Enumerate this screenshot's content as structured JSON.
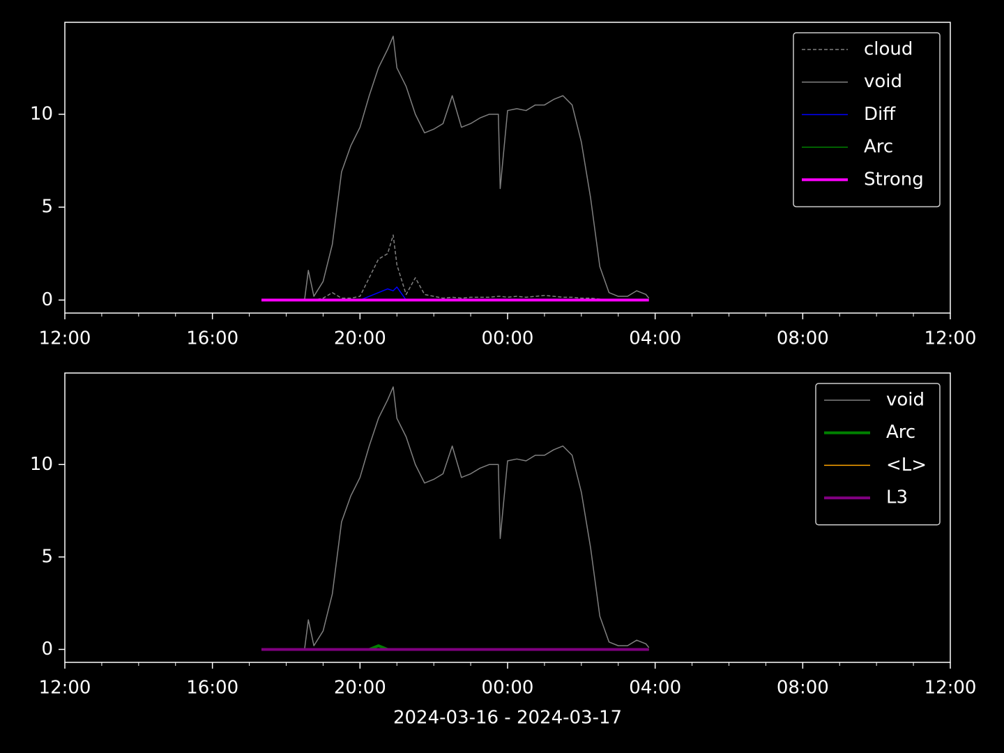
{
  "chart_data": [
    {
      "type": "line",
      "x": [
        17.33,
        17.5,
        17.75,
        18,
        18.25,
        18.5,
        18.6,
        18.75,
        19,
        19.25,
        19.5,
        19.75,
        20,
        20.25,
        20.5,
        20.75,
        20.9,
        21,
        21.25,
        21.5,
        21.75,
        22,
        22.25,
        22.5,
        22.75,
        23,
        23.25,
        23.5,
        23.75,
        23.8,
        24,
        24.25,
        24.5,
        24.75,
        25,
        25.25,
        25.5,
        25.75,
        26,
        26.25,
        26.5,
        26.75,
        27,
        27.25,
        27.5,
        27.75,
        27.83
      ],
      "series": [
        {
          "name": "cloud",
          "color": "#808080",
          "linewidth": 1.5,
          "dashed": true,
          "values": [
            0,
            0,
            0,
            0,
            0,
            0,
            0,
            0,
            0.1,
            0.4,
            0.1,
            0.1,
            0.2,
            1.2,
            2.2,
            2.5,
            3.5,
            1.9,
            0.3,
            1.2,
            0.3,
            0.2,
            0.1,
            0.15,
            0.1,
            0.15,
            0.15,
            0.15,
            0.2,
            0.2,
            0.15,
            0.2,
            0.15,
            0.2,
            0.25,
            0.2,
            0.15,
            0.15,
            0.1,
            0.1,
            0.05,
            0,
            0,
            0,
            0,
            0,
            0
          ]
        },
        {
          "name": "void",
          "color": "#808080",
          "linewidth": 1.5,
          "dashed": false,
          "values": [
            0,
            0,
            0,
            0,
            0,
            0.05,
            1.6,
            0.2,
            1.0,
            3.0,
            6.9,
            8.3,
            9.3,
            11,
            12.5,
            13.5,
            14.2,
            12.5,
            11.5,
            10,
            9,
            9.2,
            9.5,
            11,
            9.3,
            9.5,
            9.8,
            10,
            10,
            6,
            10.2,
            10.3,
            10.2,
            10.5,
            10.5,
            10.8,
            11,
            10.5,
            8.5,
            5.5,
            1.8,
            0.4,
            0.2,
            0.2,
            0.5,
            0.3,
            0.1
          ]
        },
        {
          "name": "Diff",
          "color": "#0000ff",
          "linewidth": 1.5,
          "dashed": false,
          "values": [
            0,
            0,
            0,
            0,
            0,
            0,
            0,
            0,
            0,
            0,
            0,
            0,
            0,
            0.2,
            0.4,
            0.6,
            0.5,
            0.7,
            0,
            0,
            0,
            0,
            0,
            0,
            0,
            0,
            0,
            0,
            0,
            0,
            0,
            0,
            0,
            0,
            0,
            0,
            0,
            0,
            0,
            0,
            0,
            0,
            0,
            0,
            0,
            0,
            0
          ]
        },
        {
          "name": "Arc",
          "color": "#008000",
          "linewidth": 1.5,
          "dashed": false,
          "values": [
            0,
            0,
            0,
            0,
            0,
            0,
            0,
            0,
            0,
            0,
            0,
            0,
            0,
            0,
            0,
            0,
            0,
            0,
            0,
            0,
            0,
            0,
            0,
            0,
            0,
            0,
            0,
            0,
            0,
            0,
            0,
            0,
            0,
            0,
            0,
            0,
            0,
            0,
            0,
            0,
            0,
            0,
            0,
            0,
            0,
            0,
            0
          ]
        },
        {
          "name": "Strong",
          "color": "#ff00ff",
          "linewidth": 4,
          "dashed": false,
          "values": [
            0,
            0,
            0,
            0,
            0,
            0,
            0,
            0,
            0,
            0,
            0,
            0,
            0,
            0,
            0,
            0,
            0,
            0,
            0,
            0,
            0,
            0,
            0,
            0,
            0,
            0,
            0,
            0,
            0,
            0,
            0,
            0,
            0,
            0,
            0,
            0,
            0,
            0,
            0,
            0,
            0,
            0,
            0,
            0,
            0,
            0,
            0
          ]
        }
      ],
      "xlim": [
        12,
        36
      ],
      "xticks": [
        {
          "value": 12,
          "label": "12:00"
        },
        {
          "value": 16,
          "label": "16:00"
        },
        {
          "value": 20,
          "label": "20:00"
        },
        {
          "value": 24,
          "label": "00:00"
        },
        {
          "value": 28,
          "label": "04:00"
        },
        {
          "value": 32,
          "label": "08:00"
        },
        {
          "value": 36,
          "label": "12:00"
        }
      ],
      "xminorticks": [
        13,
        14,
        15,
        17,
        18,
        19,
        21,
        22,
        23,
        25,
        26,
        27,
        29,
        30,
        31,
        33,
        34,
        35
      ],
      "ylim": [
        -0.7,
        14.95
      ],
      "yticks": [
        0,
        5,
        10
      ],
      "legend": "upper right"
    },
    {
      "type": "line",
      "x": [
        17.33,
        17.5,
        17.75,
        18,
        18.25,
        18.5,
        18.6,
        18.75,
        19,
        19.25,
        19.5,
        19.75,
        20,
        20.25,
        20.5,
        20.75,
        20.9,
        21,
        21.25,
        21.5,
        21.75,
        22,
        22.25,
        22.5,
        22.75,
        23,
        23.25,
        23.5,
        23.75,
        23.8,
        24,
        24.25,
        24.5,
        24.75,
        25,
        25.25,
        25.5,
        25.75,
        26,
        26.25,
        26.5,
        26.75,
        27,
        27.25,
        27.5,
        27.75,
        27.83
      ],
      "series": [
        {
          "name": "void",
          "color": "#808080",
          "linewidth": 1.5,
          "dashed": false,
          "values": [
            0,
            0,
            0,
            0,
            0,
            0.05,
            1.6,
            0.2,
            1.0,
            3.0,
            6.9,
            8.3,
            9.3,
            11,
            12.5,
            13.5,
            14.2,
            12.5,
            11.5,
            10,
            9,
            9.2,
            9.5,
            11,
            9.3,
            9.5,
            9.8,
            10,
            10,
            6,
            10.2,
            10.3,
            10.2,
            10.5,
            10.5,
            10.8,
            11,
            10.5,
            8.5,
            5.5,
            1.8,
            0.4,
            0.2,
            0.2,
            0.5,
            0.3,
            0.1
          ]
        },
        {
          "name": "Arc",
          "color": "#008000",
          "linewidth": 4,
          "dashed": false,
          "values": [
            0,
            0,
            0,
            0,
            0,
            0,
            0,
            0,
            0,
            0,
            0,
            0,
            0,
            0,
            0.2,
            0,
            0,
            0,
            0,
            0,
            0,
            0,
            0,
            0,
            0,
            0,
            0,
            0,
            0,
            0,
            0,
            0,
            0,
            0,
            0,
            0,
            0,
            0,
            0,
            0,
            0,
            0,
            0,
            0,
            0,
            0,
            0
          ]
        },
        {
          "name": "<L>",
          "color": "#ffa500",
          "linewidth": 1.5,
          "dashed": false,
          "values": [
            0,
            0,
            0,
            0,
            0,
            0,
            0,
            0,
            0,
            0,
            0,
            0,
            0,
            0,
            0,
            0,
            0,
            0,
            0,
            0,
            0,
            0,
            0,
            0,
            0,
            0,
            0,
            0,
            0,
            0,
            0,
            0,
            0,
            0,
            0,
            0,
            0,
            0,
            0,
            0,
            0,
            0,
            0,
            0,
            0,
            0,
            0
          ]
        },
        {
          "name": "L3",
          "color": "#800080",
          "linewidth": 4,
          "dashed": false,
          "values": [
            0,
            0,
            0,
            0,
            0,
            0,
            0,
            0,
            0,
            0,
            0,
            0,
            0,
            0,
            0,
            0,
            0,
            0,
            0,
            0,
            0,
            0,
            0,
            0,
            0,
            0,
            0,
            0,
            0,
            0,
            0,
            0,
            0,
            0,
            0,
            0,
            0,
            0,
            0,
            0,
            0,
            0,
            0,
            0,
            0,
            0,
            0
          ]
        }
      ],
      "xlim": [
        12,
        36
      ],
      "xticks": [
        {
          "value": 12,
          "label": "12:00"
        },
        {
          "value": 16,
          "label": "16:00"
        },
        {
          "value": 20,
          "label": "20:00"
        },
        {
          "value": 24,
          "label": "00:00"
        },
        {
          "value": 28,
          "label": "04:00"
        },
        {
          "value": 32,
          "label": "08:00"
        },
        {
          "value": 36,
          "label": "12:00"
        }
      ],
      "xminorticks": [
        13,
        14,
        15,
        17,
        18,
        19,
        21,
        22,
        23,
        25,
        26,
        27,
        29,
        30,
        31,
        33,
        34,
        35
      ],
      "ylim": [
        -0.7,
        14.95
      ],
      "yticks": [
        0,
        5,
        10
      ],
      "xlabel": "2024-03-16 - 2024-03-17",
      "legend": "upper right"
    }
  ]
}
